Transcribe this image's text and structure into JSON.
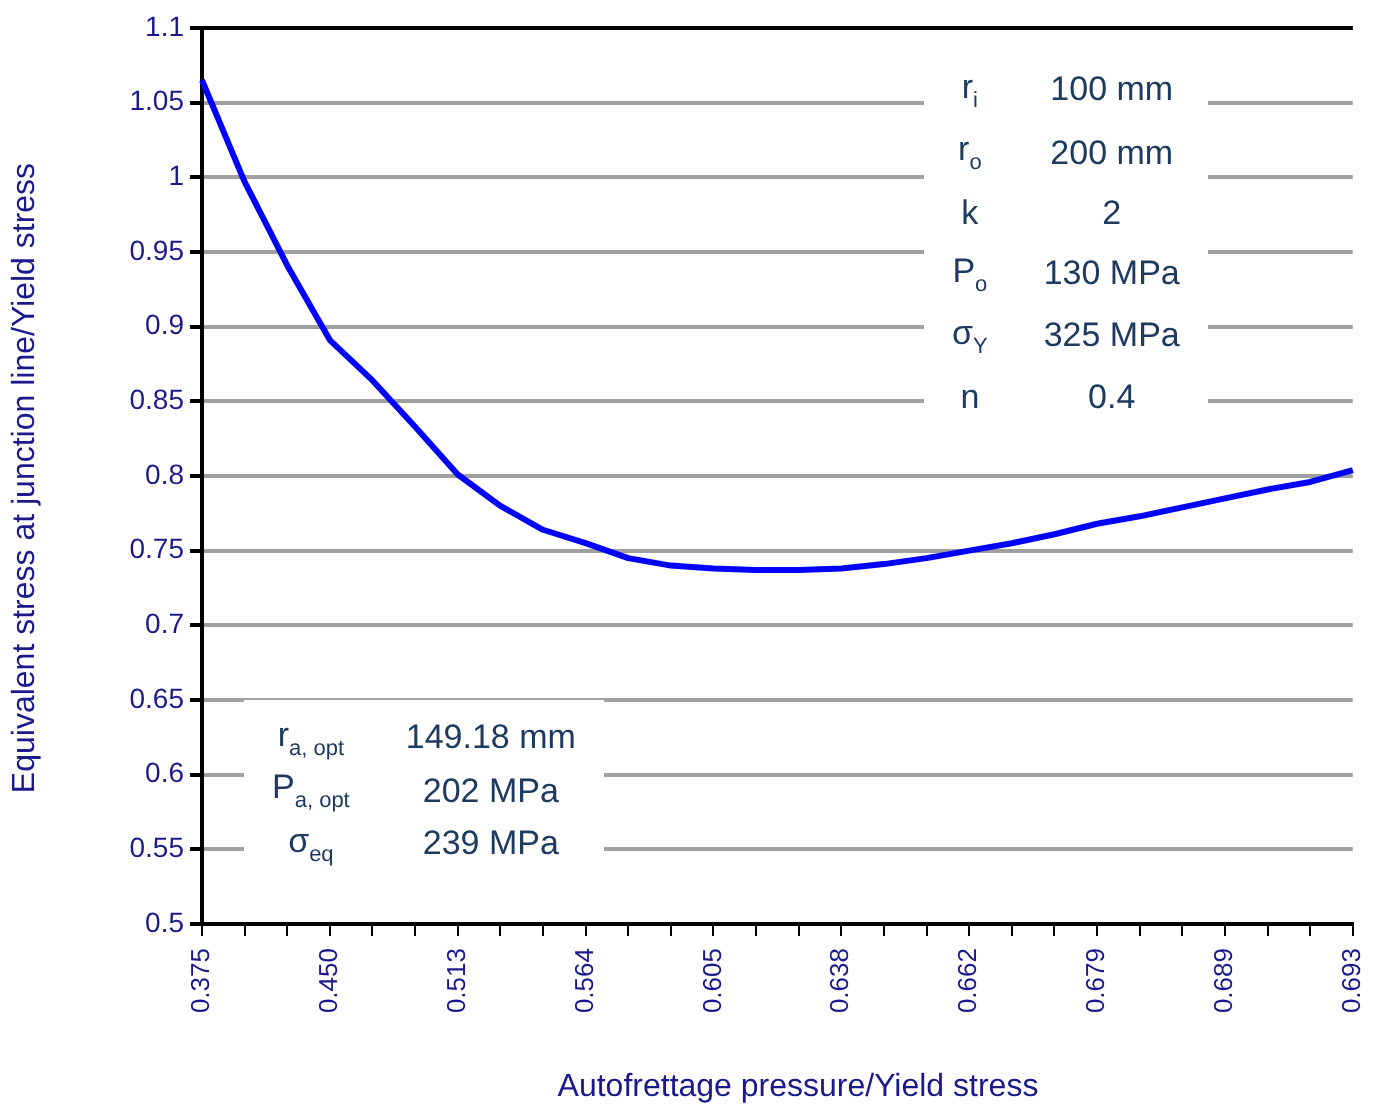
{
  "chart_data": {
    "type": "line",
    "xlabel": "Autofrettage pressure/Yield stress",
    "ylabel": "Equivalent stress at junction line/Yield stress",
    "categories": [
      "0.375",
      null,
      null,
      "0.450",
      null,
      null,
      "0.513",
      null,
      null,
      "0.564",
      null,
      null,
      "0.605",
      null,
      null,
      "0.638",
      null,
      null,
      "0.662",
      null,
      null,
      "0.679",
      null,
      null,
      "0.689",
      null,
      null,
      "0.693"
    ],
    "series": [
      {
        "color": "#0000ff",
        "values": [
          1.065,
          0.997,
          0.941,
          0.891,
          0.864,
          0.833,
          0.801,
          0.78,
          0.764,
          0.755,
          0.745,
          0.74,
          0.738,
          0.737,
          0.737,
          0.738,
          0.741,
          0.745,
          0.75,
          0.755,
          0.761,
          0.768,
          0.773,
          0.779,
          0.785,
          0.791,
          0.796,
          0.804
        ]
      }
    ],
    "ylim": [
      0.5,
      1.1
    ],
    "yticks": [
      0.5,
      0.55,
      0.6,
      0.65,
      0.7,
      0.75,
      0.8,
      0.85,
      0.9,
      0.95,
      1,
      1.05,
      1.1
    ],
    "grid": "y",
    "legend": false,
    "marker": "none",
    "line_style": "solid",
    "annotations": [
      "r$_{i}$",
      "100 mm",
      "r$_{o}$",
      "200 mm",
      "k",
      "2",
      "P$_{o}$",
      "130 MPa",
      "σ$_{Y}$",
      "325 MPa",
      "n",
      "0.4",
      "r$_{a, opt}$",
      "149.18 mm",
      "P$_{a, opt}$",
      "202 MPa",
      "σ$_{eq}$",
      "239 MPa"
    ]
  }
}
